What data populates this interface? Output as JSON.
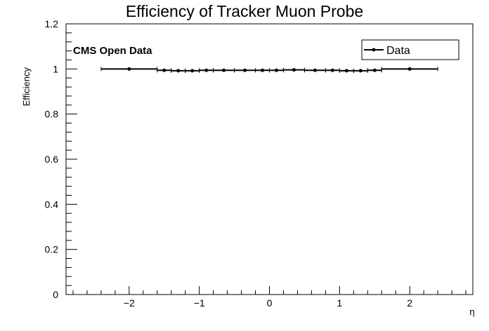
{
  "chart_data": {
    "type": "scatter",
    "title": "Efficiency of Tracker Muon Probe",
    "xlabel": "η",
    "ylabel": "Efficiency",
    "xlim": [
      -2.9,
      2.9
    ],
    "ylim": [
      0,
      1.2
    ],
    "xticks": [
      -2,
      -1,
      0,
      1,
      2
    ],
    "xtick_labels": [
      "−2",
      "−1",
      "0",
      "1",
      "2"
    ],
    "yticks": [
      0,
      0.2,
      0.4,
      0.6,
      0.8,
      1,
      1.2
    ],
    "ytick_labels": [
      "0",
      "0.2",
      "0.4",
      "0.6",
      "0.8",
      "1",
      "1.2"
    ],
    "annotation": "CMS Open Data",
    "legend": {
      "position": "top-right",
      "entries": [
        "Data"
      ]
    },
    "grid": false,
    "series": [
      {
        "name": "Data",
        "color": "#000000",
        "points": [
          {
            "x": -2.0,
            "xlow": -2.4,
            "xhigh": -1.6,
            "y": 1.0
          },
          {
            "x": -1.5,
            "xlow": -1.6,
            "xhigh": -1.4,
            "y": 0.994
          },
          {
            "x": -1.3,
            "xlow": -1.4,
            "xhigh": -1.2,
            "y": 0.992
          },
          {
            "x": -1.1,
            "xlow": -1.2,
            "xhigh": -1.0,
            "y": 0.992
          },
          {
            "x": -0.9,
            "xlow": -1.0,
            "xhigh": -0.8,
            "y": 0.994
          },
          {
            "x": -0.65,
            "xlow": -0.8,
            "xhigh": -0.5,
            "y": 0.994
          },
          {
            "x": -0.35,
            "xlow": -0.5,
            "xhigh": -0.2,
            "y": 0.994
          },
          {
            "x": -0.1,
            "xlow": -0.2,
            "xhigh": 0.0,
            "y": 0.994
          },
          {
            "x": 0.1,
            "xlow": 0.0,
            "xhigh": 0.2,
            "y": 0.994
          },
          {
            "x": 0.35,
            "xlow": 0.2,
            "xhigh": 0.5,
            "y": 0.996
          },
          {
            "x": 0.65,
            "xlow": 0.5,
            "xhigh": 0.8,
            "y": 0.994
          },
          {
            "x": 0.9,
            "xlow": 0.8,
            "xhigh": 1.0,
            "y": 0.994
          },
          {
            "x": 1.1,
            "xlow": 1.0,
            "xhigh": 1.2,
            "y": 0.992
          },
          {
            "x": 1.3,
            "xlow": 1.2,
            "xhigh": 1.4,
            "y": 0.992
          },
          {
            "x": 1.5,
            "xlow": 1.4,
            "xhigh": 1.6,
            "y": 0.994
          },
          {
            "x": 2.0,
            "xlow": 1.6,
            "xhigh": 2.4,
            "y": 1.0
          }
        ]
      }
    ]
  }
}
